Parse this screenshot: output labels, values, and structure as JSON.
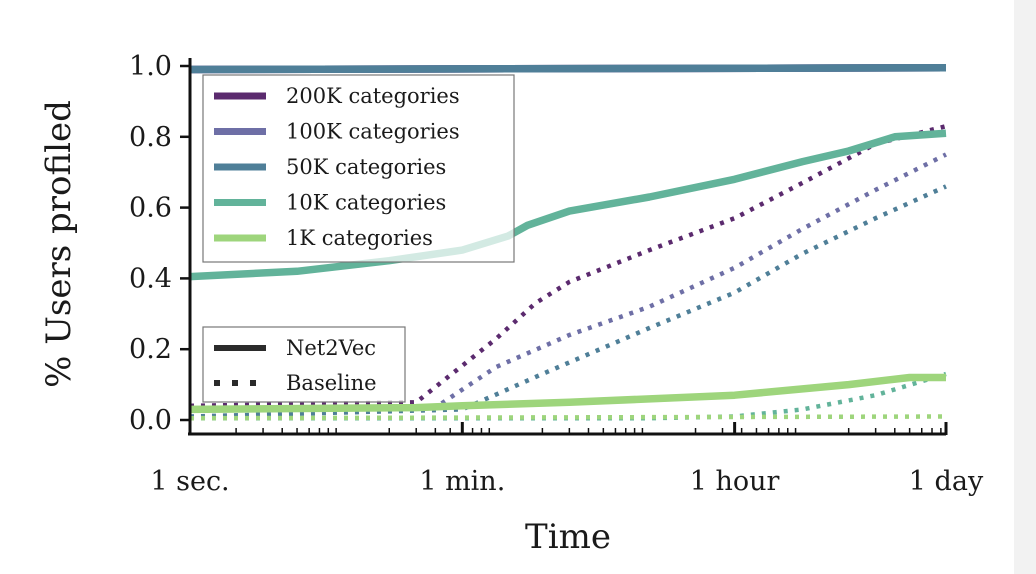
{
  "chart_data": {
    "type": "line",
    "xlabel": "Time",
    "ylabel": "% Users profiled",
    "x_scale": "log",
    "x_unit": "seconds",
    "xlim": [
      1,
      86400
    ],
    "ylim": [
      0,
      1
    ],
    "x_ticks": [
      {
        "value": 1,
        "label": "1 sec."
      },
      {
        "value": 60,
        "label": "1 min."
      },
      {
        "value": 3600,
        "label": "1 hour"
      },
      {
        "value": 86400,
        "label": "1 day"
      }
    ],
    "y_ticks": [
      {
        "value": 0.0,
        "label": "0.0"
      },
      {
        "value": 0.2,
        "label": "0.2"
      },
      {
        "value": 0.4,
        "label": "0.4"
      },
      {
        "value": 0.6,
        "label": "0.6"
      },
      {
        "value": 0.8,
        "label": "0.8"
      },
      {
        "value": 1.0,
        "label": "1.0"
      }
    ],
    "grid": false,
    "legends": [
      {
        "position": "upper-left",
        "entries": [
          {
            "label": "200K categories",
            "color": "#5b2a6e"
          },
          {
            "label": "100K categories",
            "color": "#6e6fa6"
          },
          {
            "label": "50K categories",
            "color": "#4f7f98"
          },
          {
            "label": "10K categories",
            "color": "#62b39a"
          },
          {
            "label": "1K categories",
            "color": "#9ed57c"
          }
        ]
      },
      {
        "position": "lower-left",
        "entries": [
          {
            "label": "Net2Vec",
            "style": "solid",
            "color": "#2b2b2b"
          },
          {
            "label": "Baseline",
            "style": "dotted",
            "color": "#2b2b2b"
          }
        ]
      }
    ],
    "series": [
      {
        "name": "200K categories",
        "method": "Net2Vec",
        "color": "#5b2a6e",
        "style": "solid",
        "x": [
          1,
          86400
        ],
        "y": [
          0.99,
          0.995
        ]
      },
      {
        "name": "100K categories",
        "method": "Net2Vec",
        "color": "#6e6fa6",
        "style": "solid",
        "x": [
          1,
          86400
        ],
        "y": [
          0.99,
          0.995
        ]
      },
      {
        "name": "50K categories",
        "method": "Net2Vec",
        "color": "#4f7f98",
        "style": "solid",
        "x": [
          1,
          86400
        ],
        "y": [
          0.99,
          0.995
        ]
      },
      {
        "name": "10K categories",
        "method": "Net2Vec",
        "color": "#62b39a",
        "style": "solid",
        "x": [
          1,
          5,
          20,
          60,
          120,
          160,
          300,
          1000,
          3600,
          10000,
          20000,
          40000,
          86400
        ],
        "y": [
          0.405,
          0.42,
          0.45,
          0.48,
          0.52,
          0.55,
          0.59,
          0.63,
          0.68,
          0.73,
          0.76,
          0.8,
          0.81
        ]
      },
      {
        "name": "1K categories",
        "method": "Net2Vec",
        "color": "#9ed57c",
        "style": "solid",
        "x": [
          1,
          30,
          60,
          300,
          3600,
          20000,
          50000,
          86400
        ],
        "y": [
          0.03,
          0.035,
          0.04,
          0.05,
          0.07,
          0.1,
          0.12,
          0.12
        ]
      },
      {
        "name": "200K categories",
        "method": "Baseline",
        "color": "#5b2a6e",
        "style": "dotted",
        "x": [
          1,
          30,
          100,
          180,
          300,
          1000,
          3600,
          10000,
          30000,
          86400
        ],
        "y": [
          0.04,
          0.05,
          0.23,
          0.33,
          0.39,
          0.48,
          0.57,
          0.67,
          0.78,
          0.83
        ]
      },
      {
        "name": "100K categories",
        "method": "Baseline",
        "color": "#6e6fa6",
        "style": "dotted",
        "x": [
          1,
          40,
          100,
          300,
          1000,
          3600,
          10000,
          30000,
          86400
        ],
        "y": [
          0.03,
          0.035,
          0.15,
          0.24,
          0.32,
          0.43,
          0.54,
          0.65,
          0.75
        ]
      },
      {
        "name": "50K categories",
        "method": "Baseline",
        "color": "#4f7f98",
        "style": "dotted",
        "x": [
          1,
          60,
          200,
          1000,
          3600,
          10000,
          30000,
          86400
        ],
        "y": [
          0.01,
          0.03,
          0.13,
          0.26,
          0.36,
          0.47,
          0.57,
          0.66
        ]
      },
      {
        "name": "10K categories",
        "method": "Baseline",
        "color": "#62b39a",
        "style": "dotted",
        "x": [
          1,
          1000,
          3600,
          10000,
          30000,
          86400
        ],
        "y": [
          0.005,
          0.005,
          0.01,
          0.03,
          0.07,
          0.13
        ]
      },
      {
        "name": "1K categories",
        "method": "Baseline",
        "color": "#9ed57c",
        "style": "dotted",
        "x": [
          1,
          86400
        ],
        "y": [
          0.005,
          0.01
        ]
      }
    ]
  }
}
